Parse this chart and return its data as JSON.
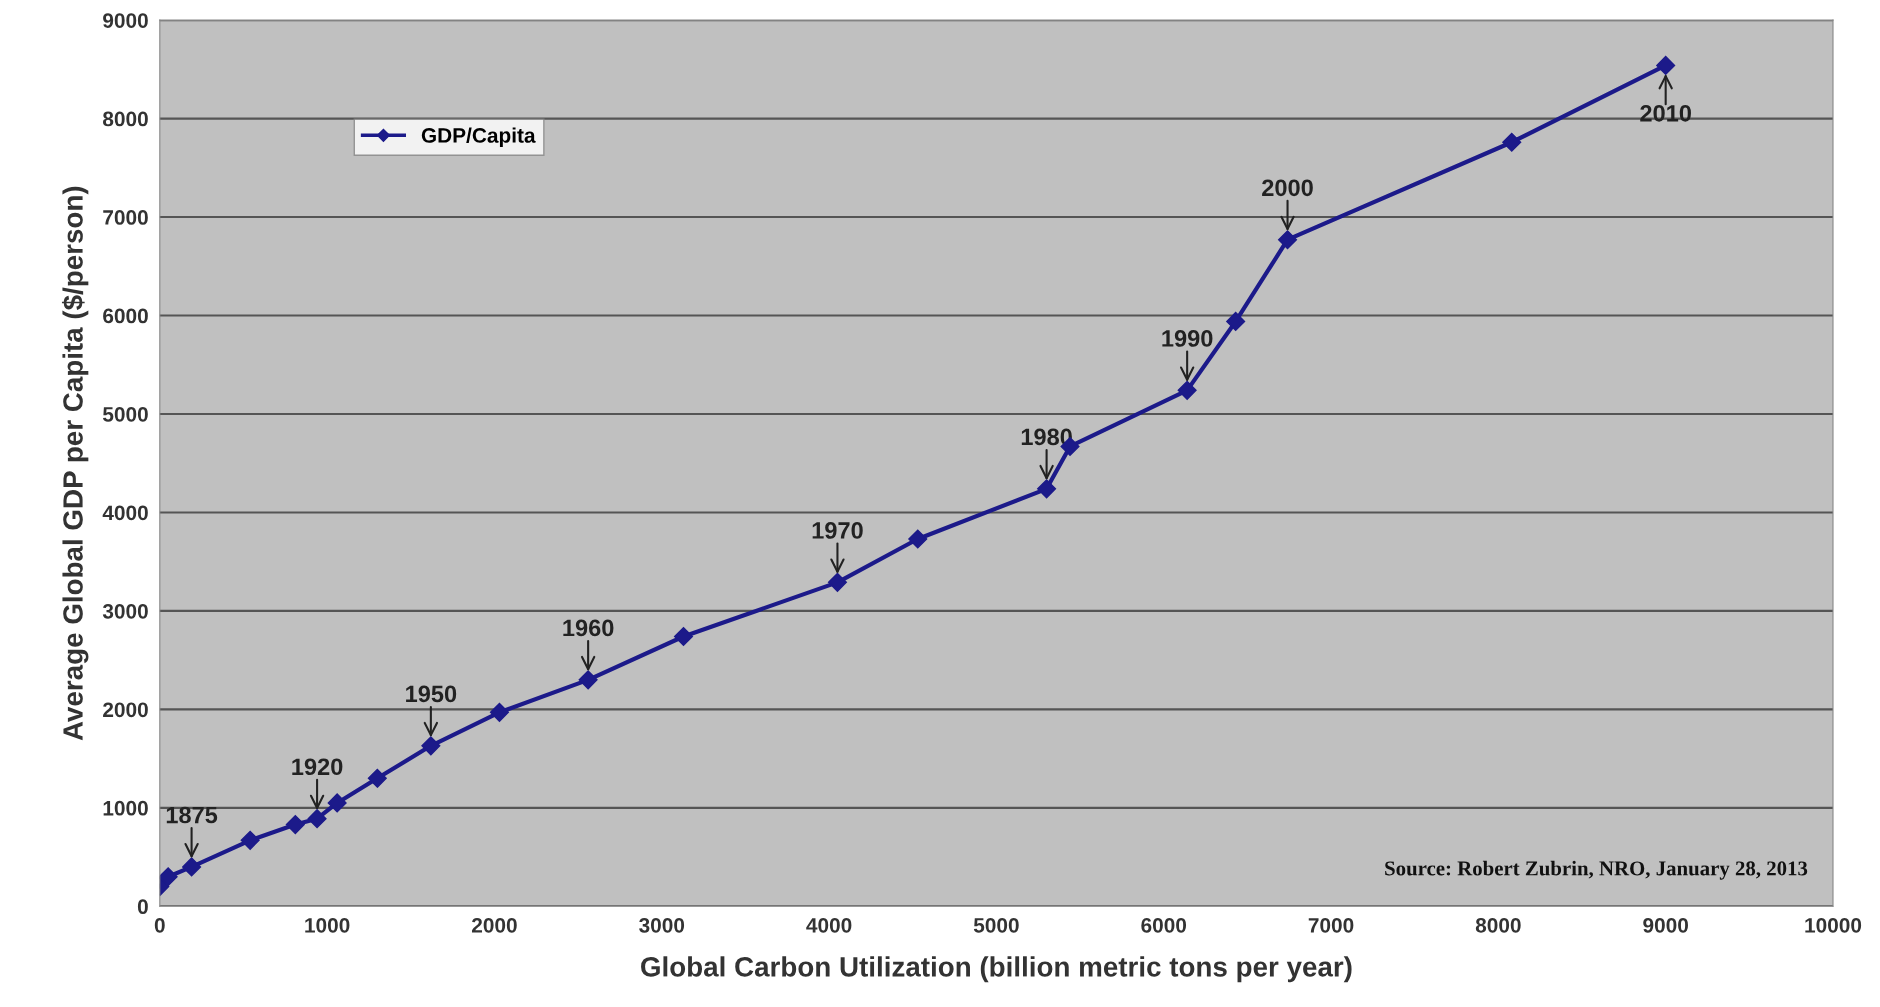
{
  "chart_data": {
    "type": "line",
    "xlabel": "Global Carbon Utilization (billion metric tons per year)",
    "ylabel": "Average Global GDP per Capita ($/person)",
    "series": [
      {
        "name": "GDP/Capita",
        "color": "#1c1a8a",
        "x": [
          0,
          50,
          190,
          540,
          810,
          940,
          1060,
          1300,
          1620,
          2030,
          2560,
          3130,
          4050,
          4530,
          5300,
          5440,
          6140,
          6430,
          6740,
          8080,
          9000
        ],
        "values": [
          200,
          300,
          400,
          670,
          830,
          890,
          1050,
          1300,
          1630,
          1970,
          2300,
          2740,
          3290,
          3730,
          4240,
          4670,
          5240,
          5940,
          6770,
          7760,
          8540
        ]
      }
    ],
    "xlim": [
      0,
      10000
    ],
    "xticks": [
      0,
      1000,
      2000,
      3000,
      4000,
      5000,
      6000,
      7000,
      8000,
      9000,
      10000
    ],
    "ylim": [
      0,
      9000
    ],
    "yticks": [
      0,
      1000,
      2000,
      3000,
      4000,
      5000,
      6000,
      7000,
      8000,
      9000
    ],
    "grid": "y",
    "legend": "top left",
    "marker": "diamond",
    "line_style": "solid",
    "annotations": [
      {
        "text": "1875",
        "x": 190,
        "y": 400
      },
      {
        "text": "1920",
        "x": 940,
        "y": 890
      },
      {
        "text": "1950",
        "x": 1620,
        "y": 1630
      },
      {
        "text": "1960",
        "x": 2560,
        "y": 2300
      },
      {
        "text": "1970",
        "x": 4050,
        "y": 3290
      },
      {
        "text": "1980",
        "x": 5300,
        "y": 4240
      },
      {
        "text": "1990",
        "x": 6140,
        "y": 5240
      },
      {
        "text": "2000",
        "x": 6740,
        "y": 6770
      },
      {
        "text": "2010",
        "x": 9000,
        "y": 8540
      },
      "Source: Robert Zubrin, NRO, January 28, 2013"
    ]
  }
}
